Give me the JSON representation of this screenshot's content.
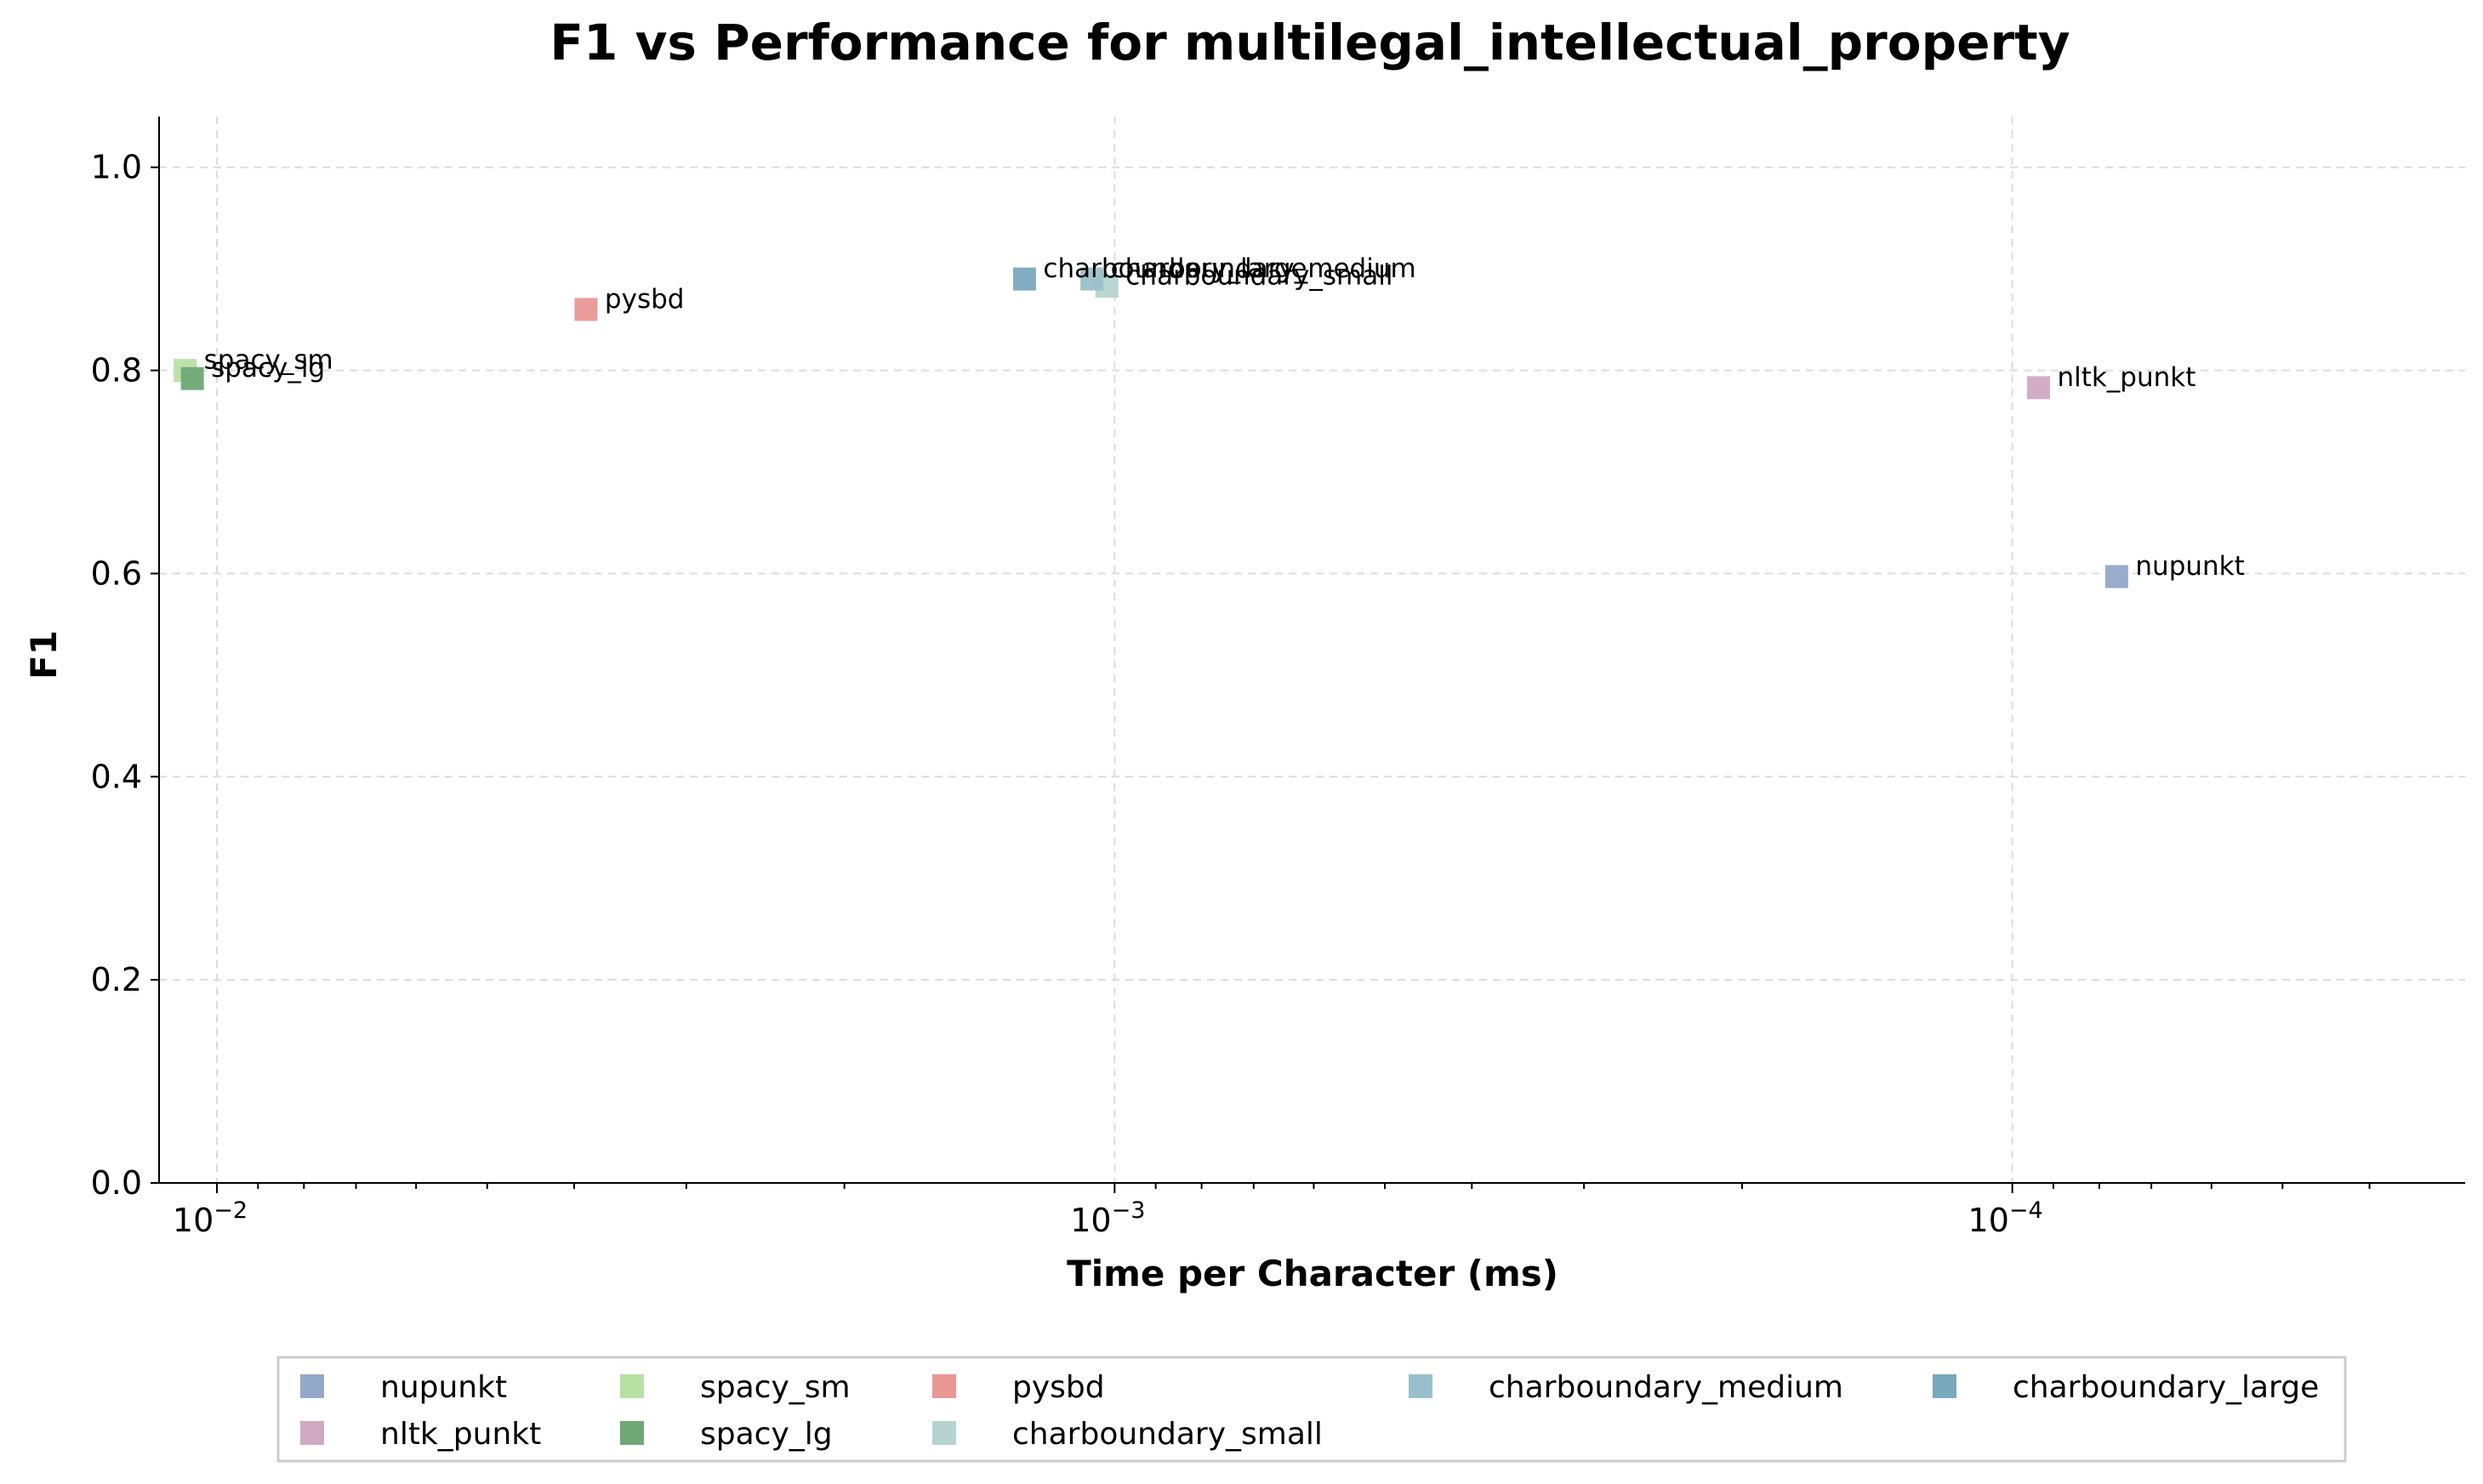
{
  "chart_data": {
    "type": "scatter",
    "title": "F1 vs Performance for multilegal_intellectual_property",
    "xlabel": "Time per Character (ms)",
    "ylabel": "F1",
    "x_scale": "log",
    "x_inverted": true,
    "xlim": [
      0.0116,
      3.13e-05
    ],
    "ylim": [
      0,
      1.05
    ],
    "x_ticks": [
      {
        "value": 0.01,
        "label": "10",
        "exp": "−2"
      },
      {
        "value": 0.001,
        "label": "10",
        "exp": "−3"
      },
      {
        "value": 0.0001,
        "label": "10",
        "exp": "−4"
      }
    ],
    "y_ticks": [
      {
        "value": 0,
        "label": "0.0"
      },
      {
        "value": 0.2,
        "label": "0.2"
      },
      {
        "value": 0.4,
        "label": "0.4"
      },
      {
        "value": 0.6,
        "label": "0.6"
      },
      {
        "value": 0.8,
        "label": "0.8"
      },
      {
        "value": 1.0,
        "label": "1.0"
      }
    ],
    "grid": true,
    "legend_position": "bottom",
    "series": [
      {
        "name": "nupunkt",
        "x": 7.65e-05,
        "y": 0.597,
        "color": "#94a9c9"
      },
      {
        "name": "nltk_punkt",
        "x": 9.35e-05,
        "y": 0.783,
        "color": "#d0a9c2"
      },
      {
        "name": "spacy_sm",
        "x": 0.01085,
        "y": 0.8,
        "color": "#b8e0a5"
      },
      {
        "name": "spacy_lg",
        "x": 0.01065,
        "y": 0.792,
        "color": "#6fa874"
      },
      {
        "name": "pysbd",
        "x": 0.00388,
        "y": 0.86,
        "color": "#ea9695"
      },
      {
        "name": "charboundary_small",
        "x": 0.00102,
        "y": 0.883,
        "color": "#b5d4d0"
      },
      {
        "name": "charboundary_medium",
        "x": 0.00106,
        "y": 0.89,
        "color": "#99c0ca"
      },
      {
        "name": "charboundary_large",
        "x": 0.00126,
        "y": 0.89,
        "color": "#79a9bd"
      }
    ]
  }
}
